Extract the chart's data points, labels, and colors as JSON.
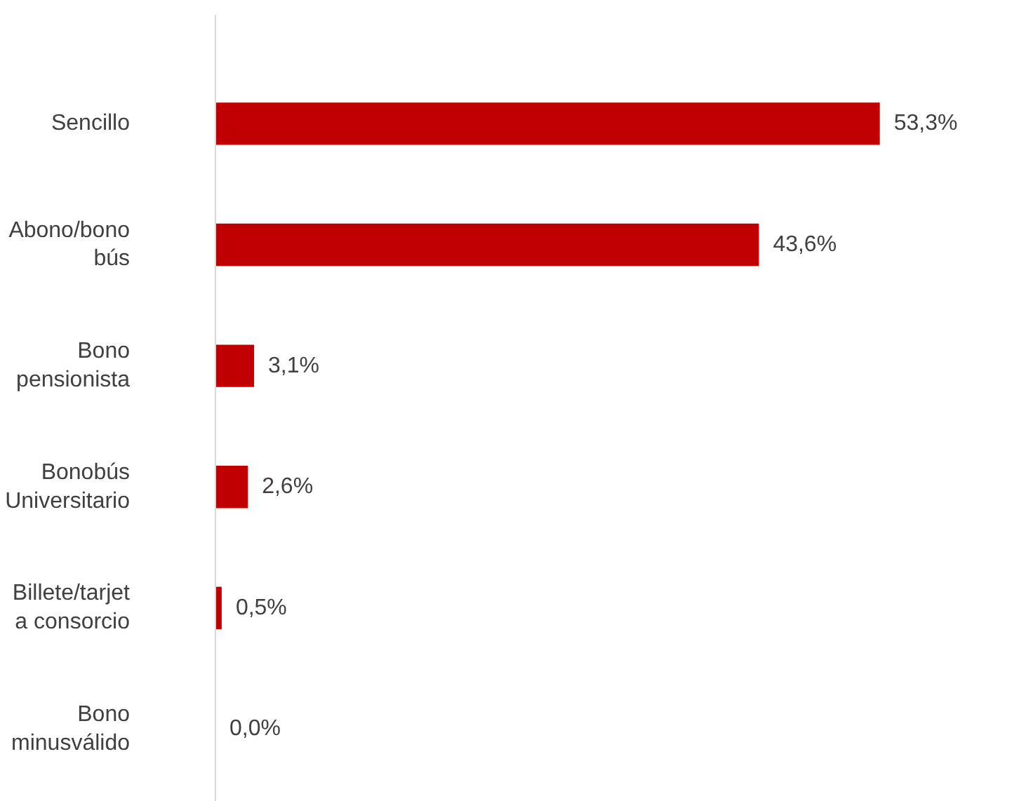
{
  "chart_data": {
    "type": "bar",
    "orientation": "horizontal",
    "categories": [
      "Sencillo",
      "Abono/bono\nbús",
      "Bono\npensionista",
      "Bonobús\nUniversitario",
      "Billete/tarjet\na consorcio",
      "Bono\nminusválido"
    ],
    "values": [
      53.3,
      43.6,
      3.1,
      2.6,
      0.5,
      0.0
    ],
    "color": "#c00000",
    "value_labels": [
      "53,3%",
      "43,6%",
      "3,1%",
      "2,6%",
      "0,5%",
      "0,0%"
    ],
    "grid": false
  }
}
